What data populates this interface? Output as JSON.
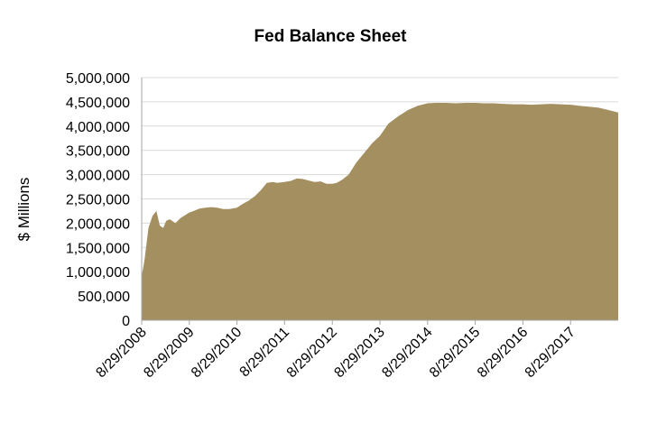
{
  "chart_data": {
    "type": "area",
    "title": "Fed Balance Sheet",
    "xlabel": "",
    "ylabel": "$ Millions",
    "ylim": [
      0,
      5000000
    ],
    "grid": true,
    "legend": "none",
    "colors": {
      "area": "#a38f5f",
      "grid": "#d9d9d9",
      "axis": "#a6a6a6"
    },
    "y_ticks": [
      0,
      500000,
      1000000,
      1500000,
      2000000,
      2500000,
      3000000,
      3500000,
      4000000,
      4500000,
      5000000
    ],
    "y_tick_labels": [
      "0",
      "500,000",
      "1,000,000",
      "1,500,000",
      "2,000,000",
      "2,500,000",
      "3,000,000",
      "3,500,000",
      "4,000,000",
      "4,500,000",
      "5,000,000"
    ],
    "x_range": [
      "2008-08-29",
      "2018-08-29"
    ],
    "x_ticks": [
      "2008-08-29",
      "2009-08-29",
      "2010-08-29",
      "2011-08-29",
      "2012-08-29",
      "2013-08-29",
      "2014-08-29",
      "2015-08-29",
      "2016-08-29",
      "2017-08-29"
    ],
    "x_tick_labels": [
      "8/29/2008",
      "8/29/2009",
      "8/29/2010",
      "8/29/2011",
      "8/29/2012",
      "8/29/2013",
      "8/29/2014",
      "8/29/2015",
      "8/29/2016",
      "8/29/2017"
    ],
    "series": [
      {
        "x": [
          "2008-08-29",
          "2008-09-20",
          "2008-10-20",
          "2008-11-20",
          "2008-12-20",
          "2009-01-15",
          "2009-02-10",
          "2009-03-05",
          "2009-04-01",
          "2009-05-15",
          "2009-06-20",
          "2009-07-25",
          "2009-08-29",
          "2009-10-01",
          "2009-11-15",
          "2010-01-01",
          "2010-02-15",
          "2010-03-30",
          "2010-05-15",
          "2010-07-01",
          "2010-08-29",
          "2010-10-15",
          "2010-12-01",
          "2011-01-15",
          "2011-03-01",
          "2011-04-15",
          "2011-06-01",
          "2011-07-01",
          "2011-08-29",
          "2011-10-15",
          "2011-12-01",
          "2012-01-15",
          "2012-03-01",
          "2012-04-15",
          "2012-06-01",
          "2012-07-15",
          "2012-08-29",
          "2012-10-01",
          "2012-11-15",
          "2013-01-01",
          "2013-03-01",
          "2013-05-01",
          "2013-07-01",
          "2013-08-29",
          "2013-11-01",
          "2014-01-15",
          "2014-04-01",
          "2014-06-15",
          "2014-08-29",
          "2014-11-01",
          "2015-01-15",
          "2015-04-01",
          "2015-06-15",
          "2015-08-29",
          "2015-11-01",
          "2016-01-15",
          "2016-04-01",
          "2016-06-15",
          "2016-08-29",
          "2016-11-01",
          "2017-01-15",
          "2017-04-01",
          "2017-06-15",
          "2017-08-29",
          "2017-11-01",
          "2018-01-15",
          "2018-04-01",
          "2018-06-15",
          "2018-08-29"
        ],
        "values": [
          900000,
          1250000,
          1900000,
          2150000,
          2250000,
          1950000,
          1900000,
          2050000,
          2080000,
          2000000,
          2100000,
          2160000,
          2220000,
          2250000,
          2300000,
          2320000,
          2330000,
          2320000,
          2290000,
          2290000,
          2320000,
          2400000,
          2470000,
          2560000,
          2680000,
          2830000,
          2850000,
          2830000,
          2850000,
          2870000,
          2920000,
          2910000,
          2880000,
          2850000,
          2860000,
          2810000,
          2810000,
          2830000,
          2900000,
          3000000,
          3250000,
          3450000,
          3650000,
          3800000,
          4050000,
          4200000,
          4330000,
          4420000,
          4470000,
          4480000,
          4480000,
          4470000,
          4480000,
          4480000,
          4470000,
          4470000,
          4460000,
          4450000,
          4450000,
          4440000,
          4450000,
          4460000,
          4450000,
          4440000,
          4420000,
          4400000,
          4380000,
          4330000,
          4280000
        ]
      }
    ]
  }
}
